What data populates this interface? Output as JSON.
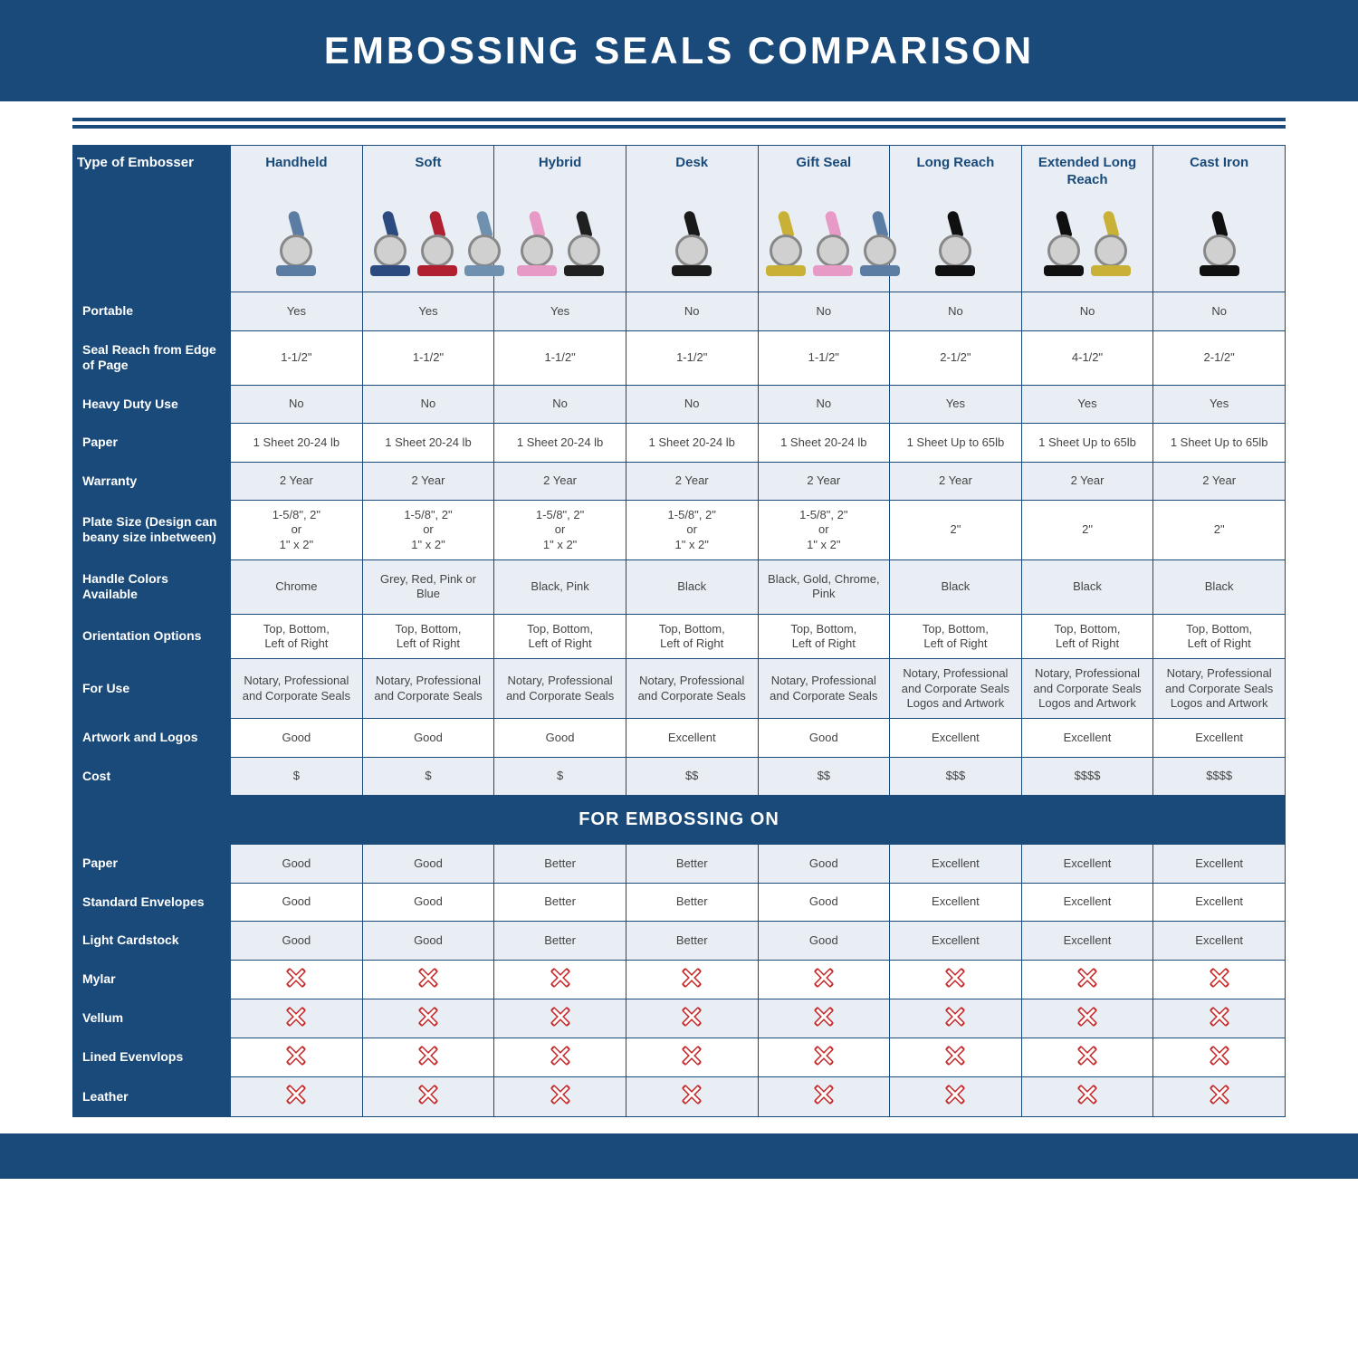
{
  "title": "EMBOSSING SEALS COMPARISON",
  "section_header": "FOR EMBOSSING ON",
  "type_label": "Type of Embosser",
  "colors": {
    "brand": "#1a4a7a",
    "row_alt": "#e8eef4",
    "cross": "#c62828",
    "text": "#444444"
  },
  "columns": [
    {
      "key": "handheld",
      "label": "Handheld",
      "img_colors": [
        "#5b7ca3"
      ]
    },
    {
      "key": "soft",
      "label": "Soft",
      "img_colors": [
        "#2b4a80",
        "#b02030",
        "#7090b0"
      ]
    },
    {
      "key": "hybrid",
      "label": "Hybrid",
      "img_colors": [
        "#e89ac7",
        "#202020"
      ]
    },
    {
      "key": "desk",
      "label": "Desk",
      "img_colors": [
        "#1a1a1a"
      ]
    },
    {
      "key": "gift",
      "label": "Gift Seal",
      "img_colors": [
        "#c9b037",
        "#e89ac7",
        "#5b7ca3"
      ]
    },
    {
      "key": "long",
      "label": "Long Reach",
      "img_colors": [
        "#101010"
      ]
    },
    {
      "key": "extlong",
      "label": "Extended Long Reach",
      "img_colors": [
        "#101010",
        "#c9b037"
      ]
    },
    {
      "key": "cast",
      "label": "Cast Iron",
      "img_colors": [
        "#101010"
      ]
    }
  ],
  "rows": [
    {
      "label": "Portable",
      "alt": 1,
      "cells": [
        "Yes",
        "Yes",
        "Yes",
        "No",
        "No",
        "No",
        "No",
        "No"
      ]
    },
    {
      "label": "Seal Reach from Edge of Page",
      "alt": 2,
      "cells": [
        "1-1/2\"",
        "1-1/2\"",
        "1-1/2\"",
        "1-1/2\"",
        "1-1/2\"",
        "2-1/2\"",
        "4-1/2\"",
        "2-1/2\""
      ]
    },
    {
      "label": "Heavy Duty Use",
      "alt": 1,
      "cells": [
        "No",
        "No",
        "No",
        "No",
        "No",
        "Yes",
        "Yes",
        "Yes"
      ]
    },
    {
      "label": "Paper",
      "alt": 2,
      "cells": [
        "1 Sheet 20-24 lb",
        "1 Sheet 20-24 lb",
        "1 Sheet 20-24 lb",
        "1 Sheet 20-24 lb",
        "1 Sheet 20-24 lb",
        "1 Sheet Up to 65lb",
        "1 Sheet Up to 65lb",
        "1 Sheet Up to 65lb"
      ]
    },
    {
      "label": "Warranty",
      "alt": 1,
      "cells": [
        "2 Year",
        "2 Year",
        "2 Year",
        "2 Year",
        "2 Year",
        "2 Year",
        "2 Year",
        "2 Year"
      ]
    },
    {
      "label": "Plate Size (Design can beany size inbetween)",
      "alt": 2,
      "cells": [
        "1-5/8\", 2\"\nor\n1\" x 2\"",
        "1-5/8\", 2\"\nor\n1\" x 2\"",
        "1-5/8\", 2\"\nor\n1\" x 2\"",
        "1-5/8\", 2\"\nor\n1\" x 2\"",
        "1-5/8\", 2\"\nor\n1\" x 2\"",
        "2\"",
        "2\"",
        "2\""
      ]
    },
    {
      "label": "Handle Colors Available",
      "alt": 1,
      "cells": [
        "Chrome",
        "Grey, Red, Pink or Blue",
        "Black, Pink",
        "Black",
        "Black, Gold, Chrome, Pink",
        "Black",
        "Black",
        "Black"
      ]
    },
    {
      "label": "Orientation Options",
      "alt": 2,
      "cells": [
        "Top, Bottom,\nLeft of Right",
        "Top, Bottom,\nLeft of Right",
        "Top, Bottom,\nLeft of Right",
        "Top, Bottom,\nLeft of Right",
        "Top, Bottom,\nLeft of Right",
        "Top, Bottom,\nLeft of Right",
        "Top, Bottom,\nLeft of Right",
        "Top, Bottom,\nLeft of Right"
      ]
    },
    {
      "label": "For Use",
      "alt": 1,
      "cells": [
        "Notary, Professional and Corporate Seals",
        "Notary, Professional and Corporate Seals",
        "Notary, Professional and Corporate Seals",
        "Notary, Professional and Corporate Seals",
        "Notary, Professional and Corporate Seals",
        "Notary, Professional and Corporate Seals Logos and Artwork",
        "Notary, Professional and Corporate Seals Logos and Artwork",
        "Notary, Professional and Corporate Seals Logos and Artwork"
      ]
    },
    {
      "label": "Artwork and Logos",
      "alt": 2,
      "cells": [
        "Good",
        "Good",
        "Good",
        "Excellent",
        "Good",
        "Excellent",
        "Excellent",
        "Excellent"
      ]
    },
    {
      "label": "Cost",
      "alt": 1,
      "cells": [
        "$",
        "$",
        "$",
        "$$",
        "$$",
        "$$$",
        "$$$$",
        "$$$$"
      ]
    }
  ],
  "embossing_rows": [
    {
      "label": "Paper",
      "alt": 1,
      "cells": [
        "Good",
        "Good",
        "Better",
        "Better",
        "Good",
        "Excellent",
        "Excellent",
        "Excellent"
      ]
    },
    {
      "label": "Standard Envelopes",
      "alt": 2,
      "cells": [
        "Good",
        "Good",
        "Better",
        "Better",
        "Good",
        "Excellent",
        "Excellent",
        "Excellent"
      ]
    },
    {
      "label": "Light Cardstock",
      "alt": 1,
      "cells": [
        "Good",
        "Good",
        "Better",
        "Better",
        "Good",
        "Excellent",
        "Excellent",
        "Excellent"
      ]
    },
    {
      "label": "Mylar",
      "alt": 2,
      "cells": [
        "X",
        "X",
        "X",
        "X",
        "X",
        "X",
        "X",
        "X"
      ]
    },
    {
      "label": "Vellum",
      "alt": 1,
      "cells": [
        "X",
        "X",
        "X",
        "X",
        "X",
        "X",
        "X",
        "X"
      ]
    },
    {
      "label": "Lined Evenvlops",
      "alt": 2,
      "cells": [
        "X",
        "X",
        "X",
        "X",
        "X",
        "X",
        "X",
        "X"
      ]
    },
    {
      "label": "Leather",
      "alt": 1,
      "cells": [
        "X",
        "X",
        "X",
        "X",
        "X",
        "X",
        "X",
        "X"
      ]
    }
  ]
}
